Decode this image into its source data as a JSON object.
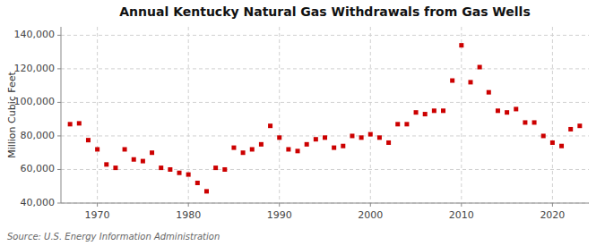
{
  "chart_data": {
    "type": "scatter",
    "title": "Annual Kentucky Natural Gas Withdrawals from Gas Wells",
    "ylabel": "Million Cubic Feet",
    "source": "Source: U.S. Energy Information Administration",
    "x": [
      1967,
      1968,
      1969,
      1970,
      1971,
      1972,
      1973,
      1974,
      1975,
      1976,
      1977,
      1978,
      1979,
      1980,
      1981,
      1982,
      1983,
      1984,
      1985,
      1986,
      1987,
      1988,
      1989,
      1990,
      1991,
      1992,
      1993,
      1994,
      1995,
      1996,
      1997,
      1998,
      1999,
      2000,
      2001,
      2002,
      2003,
      2004,
      2005,
      2006,
      2007,
      2008,
      2009,
      2010,
      2011,
      2012,
      2013,
      2014,
      2015,
      2016,
      2017,
      2018,
      2019,
      2020,
      2021,
      2022,
      2023
    ],
    "values": [
      87000,
      87500,
      77500,
      72000,
      63000,
      61000,
      72000,
      66000,
      65000,
      70000,
      61000,
      60000,
      58000,
      57000,
      52000,
      47000,
      61000,
      60000,
      73000,
      70000,
      72000,
      75000,
      86000,
      79000,
      72000,
      71000,
      75000,
      78000,
      79000,
      73000,
      74000,
      80000,
      79000,
      81000,
      79000,
      76000,
      87000,
      87000,
      94000,
      93000,
      95000,
      95000,
      113000,
      134000,
      112000,
      121000,
      106000,
      95000,
      94000,
      96000,
      88000,
      88000,
      80000,
      76000,
      74000,
      84000,
      86000
    ],
    "color": "#cc0000",
    "marker": "square",
    "xlim": [
      1966,
      2024
    ],
    "ylim": [
      40000,
      145000
    ],
    "xticks": [
      1970,
      1980,
      1990,
      2000,
      2010,
      2020
    ],
    "yticks": [
      {
        "value": 40000,
        "label": "40,000"
      },
      {
        "value": 60000,
        "label": "60,000"
      },
      {
        "value": 80000,
        "label": "80,000"
      },
      {
        "value": 100000,
        "label": "100,000"
      },
      {
        "value": 120000,
        "label": "120,000"
      },
      {
        "value": 140000,
        "label": "140,000"
      }
    ],
    "grid": true
  }
}
